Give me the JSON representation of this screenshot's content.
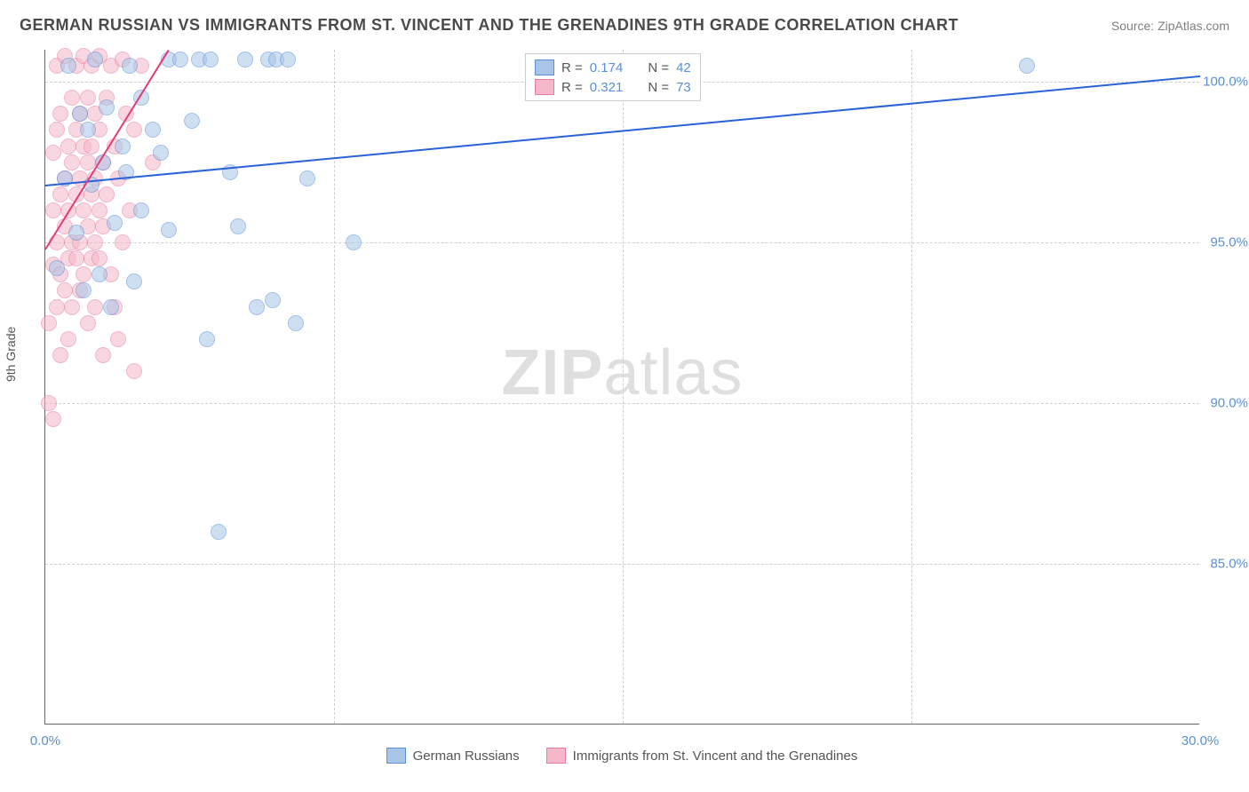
{
  "header": {
    "title": "GERMAN RUSSIAN VS IMMIGRANTS FROM ST. VINCENT AND THE GRENADINES 9TH GRADE CORRELATION CHART",
    "source": "Source: ZipAtlas.com"
  },
  "chart": {
    "type": "scatter",
    "y_axis_label": "9th Grade",
    "watermark_bold": "ZIP",
    "watermark_light": "atlas",
    "background_color": "#ffffff",
    "grid_color": "#d0d0d0",
    "axis_color": "#666666",
    "tick_color": "#5b8fd6",
    "xlim": [
      0,
      30
    ],
    "ylim": [
      80,
      101
    ],
    "x_ticks": [
      {
        "v": 0,
        "label": "0.0%"
      },
      {
        "v": 30,
        "label": "30.0%"
      }
    ],
    "x_grid": [
      7.5,
      15,
      22.5
    ],
    "y_ticks": [
      {
        "v": 85,
        "label": "85.0%"
      },
      {
        "v": 90,
        "label": "90.0%"
      },
      {
        "v": 95,
        "label": "95.0%"
      },
      {
        "v": 100,
        "label": "100.0%"
      }
    ],
    "series": [
      {
        "name": "German Russians",
        "fill": "#a8c5e8",
        "stroke": "#5b8fd6",
        "trend_color": "#2962d9",
        "R": "0.174",
        "N": "42",
        "trend": {
          "x1": 0,
          "y1": 96.8,
          "x2": 30,
          "y2": 100.2
        },
        "points": [
          [
            0.3,
            94.2
          ],
          [
            0.5,
            97.0
          ],
          [
            0.6,
            100.5
          ],
          [
            0.8,
            95.3
          ],
          [
            0.9,
            99.0
          ],
          [
            1.0,
            93.5
          ],
          [
            1.1,
            98.5
          ],
          [
            1.2,
            96.8
          ],
          [
            1.3,
            100.7
          ],
          [
            1.4,
            94.0
          ],
          [
            1.5,
            97.5
          ],
          [
            1.6,
            99.2
          ],
          [
            1.8,
            95.6
          ],
          [
            1.7,
            93.0
          ],
          [
            2.0,
            98.0
          ],
          [
            2.1,
            97.2
          ],
          [
            2.2,
            100.5
          ],
          [
            2.3,
            93.8
          ],
          [
            2.5,
            99.5
          ],
          [
            2.5,
            96.0
          ],
          [
            2.8,
            98.5
          ],
          [
            3.0,
            97.8
          ],
          [
            3.2,
            100.7
          ],
          [
            3.2,
            95.4
          ],
          [
            3.5,
            100.7
          ],
          [
            3.8,
            98.8
          ],
          [
            4.0,
            100.7
          ],
          [
            4.2,
            92.0
          ],
          [
            4.3,
            100.7
          ],
          [
            4.5,
            86.0
          ],
          [
            4.8,
            97.2
          ],
          [
            5.0,
            95.5
          ],
          [
            5.2,
            100.7
          ],
          [
            5.5,
            93.0
          ],
          [
            5.8,
            100.7
          ],
          [
            5.9,
            93.2
          ],
          [
            6.0,
            100.7
          ],
          [
            6.3,
            100.7
          ],
          [
            6.5,
            92.5
          ],
          [
            6.8,
            97.0
          ],
          [
            8.0,
            95.0
          ],
          [
            25.5,
            100.5
          ]
        ]
      },
      {
        "name": "Immigrants from St. Vincent and the Grenadines",
        "fill": "#f5b8c8",
        "stroke": "#e87ca0",
        "trend_color": "#e63976",
        "R": "0.321",
        "N": "73",
        "trend": {
          "x1": 0,
          "y1": 94.8,
          "x2": 3.2,
          "y2": 101
        },
        "points": [
          [
            0.1,
            90.0
          ],
          [
            0.1,
            92.5
          ],
          [
            0.2,
            94.3
          ],
          [
            0.2,
            96.0
          ],
          [
            0.2,
            97.8
          ],
          [
            0.2,
            89.5
          ],
          [
            0.3,
            95.0
          ],
          [
            0.3,
            98.5
          ],
          [
            0.3,
            93.0
          ],
          [
            0.3,
            100.5
          ],
          [
            0.4,
            96.5
          ],
          [
            0.4,
            94.0
          ],
          [
            0.4,
            91.5
          ],
          [
            0.4,
            99.0
          ],
          [
            0.5,
            95.5
          ],
          [
            0.5,
            97.0
          ],
          [
            0.5,
            93.5
          ],
          [
            0.5,
            100.8
          ],
          [
            0.6,
            98.0
          ],
          [
            0.6,
            94.5
          ],
          [
            0.6,
            96.0
          ],
          [
            0.6,
            92.0
          ],
          [
            0.7,
            99.5
          ],
          [
            0.7,
            95.0
          ],
          [
            0.7,
            97.5
          ],
          [
            0.7,
            93.0
          ],
          [
            0.8,
            100.5
          ],
          [
            0.8,
            96.5
          ],
          [
            0.8,
            94.5
          ],
          [
            0.8,
            98.5
          ],
          [
            0.9,
            95.0
          ],
          [
            0.9,
            97.0
          ],
          [
            0.9,
            99.0
          ],
          [
            0.9,
            93.5
          ],
          [
            1.0,
            100.8
          ],
          [
            1.0,
            96.0
          ],
          [
            1.0,
            94.0
          ],
          [
            1.0,
            98.0
          ],
          [
            1.1,
            95.5
          ],
          [
            1.1,
            97.5
          ],
          [
            1.1,
            92.5
          ],
          [
            1.1,
            99.5
          ],
          [
            1.2,
            96.5
          ],
          [
            1.2,
            94.5
          ],
          [
            1.2,
            100.5
          ],
          [
            1.2,
            98.0
          ],
          [
            1.3,
            95.0
          ],
          [
            1.3,
            97.0
          ],
          [
            1.3,
            93.0
          ],
          [
            1.3,
            99.0
          ],
          [
            1.4,
            96.0
          ],
          [
            1.4,
            100.8
          ],
          [
            1.4,
            94.5
          ],
          [
            1.4,
            98.5
          ],
          [
            1.5,
            95.5
          ],
          [
            1.5,
            97.5
          ],
          [
            1.5,
            91.5
          ],
          [
            1.6,
            99.5
          ],
          [
            1.6,
            96.5
          ],
          [
            1.7,
            100.5
          ],
          [
            1.7,
            94.0
          ],
          [
            1.8,
            98.0
          ],
          [
            1.8,
            93.0
          ],
          [
            1.9,
            97.0
          ],
          [
            1.9,
            92.0
          ],
          [
            2.0,
            95.0
          ],
          [
            2.0,
            100.7
          ],
          [
            2.1,
            99.0
          ],
          [
            2.2,
            96.0
          ],
          [
            2.3,
            98.5
          ],
          [
            2.3,
            91.0
          ],
          [
            2.5,
            100.5
          ],
          [
            2.8,
            97.5
          ]
        ]
      }
    ],
    "legend_top": {
      "label_R": "R =",
      "label_N": "N ="
    },
    "legend_bottom": [
      {
        "series": 0
      },
      {
        "series": 1
      }
    ]
  }
}
